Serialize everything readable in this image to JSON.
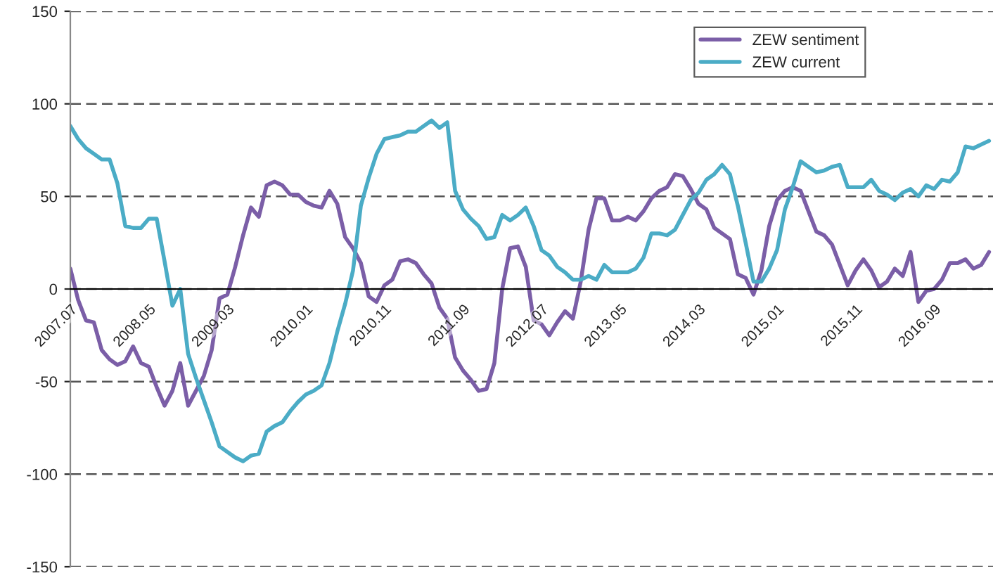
{
  "chart_data": {
    "type": "line",
    "categories": [
      "2007.07",
      null,
      null,
      null,
      null,
      null,
      null,
      null,
      null,
      null,
      "2008.05",
      null,
      null,
      null,
      null,
      null,
      null,
      null,
      null,
      null,
      "2009.03",
      null,
      null,
      null,
      null,
      null,
      null,
      null,
      null,
      null,
      "2010.01",
      null,
      null,
      null,
      null,
      null,
      null,
      null,
      null,
      null,
      "2010.11",
      null,
      null,
      null,
      null,
      null,
      null,
      null,
      null,
      null,
      "2011.09",
      null,
      null,
      null,
      null,
      null,
      null,
      null,
      null,
      null,
      "2012.07",
      null,
      null,
      null,
      null,
      null,
      null,
      null,
      null,
      null,
      "2013.05",
      null,
      null,
      null,
      null,
      null,
      null,
      null,
      null,
      null,
      "2014.03",
      null,
      null,
      null,
      null,
      null,
      null,
      null,
      null,
      null,
      "2015.01",
      null,
      null,
      null,
      null,
      null,
      null,
      null,
      null,
      null,
      "2015.11",
      null,
      null,
      null,
      null,
      null,
      null,
      null,
      null,
      null,
      "2016.09",
      null,
      null,
      null,
      null,
      null,
      null,
      null
    ],
    "series": [
      {
        "name": "ZEW sentiment",
        "color": "#7b5ea7",
        "values": [
          11,
          -6,
          -17,
          -18,
          -33,
          -38,
          -41,
          -39,
          -31,
          -40,
          -42,
          -53,
          -63,
          -55,
          -40,
          -63,
          -55,
          -47,
          -33,
          -5,
          -3,
          12,
          29,
          44,
          39,
          56,
          58,
          56,
          51,
          51,
          47,
          45,
          44,
          53,
          46,
          28,
          22,
          14,
          -4,
          -7,
          2,
          5,
          15,
          16,
          14,
          8,
          3,
          -10,
          -16,
          -37,
          -44,
          -49,
          -55,
          -54,
          -40,
          0,
          22,
          23,
          12,
          -17,
          -19,
          -25,
          -18,
          -12,
          -16,
          4,
          32,
          49,
          49,
          37,
          37,
          39,
          37,
          42,
          49,
          53,
          55,
          62,
          61,
          54,
          46,
          43,
          33,
          30,
          27,
          8,
          6,
          -3,
          10,
          34,
          48,
          53,
          55,
          53,
          42,
          31,
          29,
          24,
          13,
          2,
          10,
          16,
          10,
          1,
          4,
          11,
          7,
          20,
          -7,
          -1,
          0,
          5,
          14,
          14,
          16,
          11,
          13,
          20
        ]
      },
      {
        "name": "ZEW current",
        "color": "#4bacc6",
        "values": [
          88,
          81,
          76,
          73,
          70,
          70,
          57,
          34,
          33,
          33,
          38,
          38,
          15,
          -9,
          0,
          -35,
          -48,
          -60,
          -72,
          -85,
          -88,
          -91,
          -93,
          -90,
          -89,
          -77,
          -74,
          -72,
          -66,
          -61,
          -57,
          -55,
          -52,
          -40,
          -23,
          -8,
          10,
          45,
          60,
          73,
          81,
          82,
          83,
          85,
          85,
          88,
          91,
          87,
          90,
          53,
          43,
          38,
          34,
          27,
          28,
          40,
          37,
          40,
          44,
          34,
          21,
          18,
          12,
          9,
          5,
          5,
          7,
          5,
          13,
          9,
          9,
          9,
          11,
          17,
          30,
          30,
          29,
          32,
          40,
          48,
          52,
          59,
          62,
          67,
          62,
          45,
          25,
          4,
          4,
          11,
          21,
          43,
          55,
          69,
          66,
          63,
          64,
          66,
          67,
          55,
          55,
          55,
          59,
          53,
          51,
          48,
          52,
          54,
          50,
          56,
          54,
          59,
          58,
          63,
          77,
          76,
          78,
          80
        ]
      }
    ],
    "ylim": [
      -150,
      150
    ],
    "yticks": [
      -150,
      -100,
      -50,
      0,
      50,
      100,
      150
    ],
    "grid": "y",
    "legend": "top right"
  }
}
